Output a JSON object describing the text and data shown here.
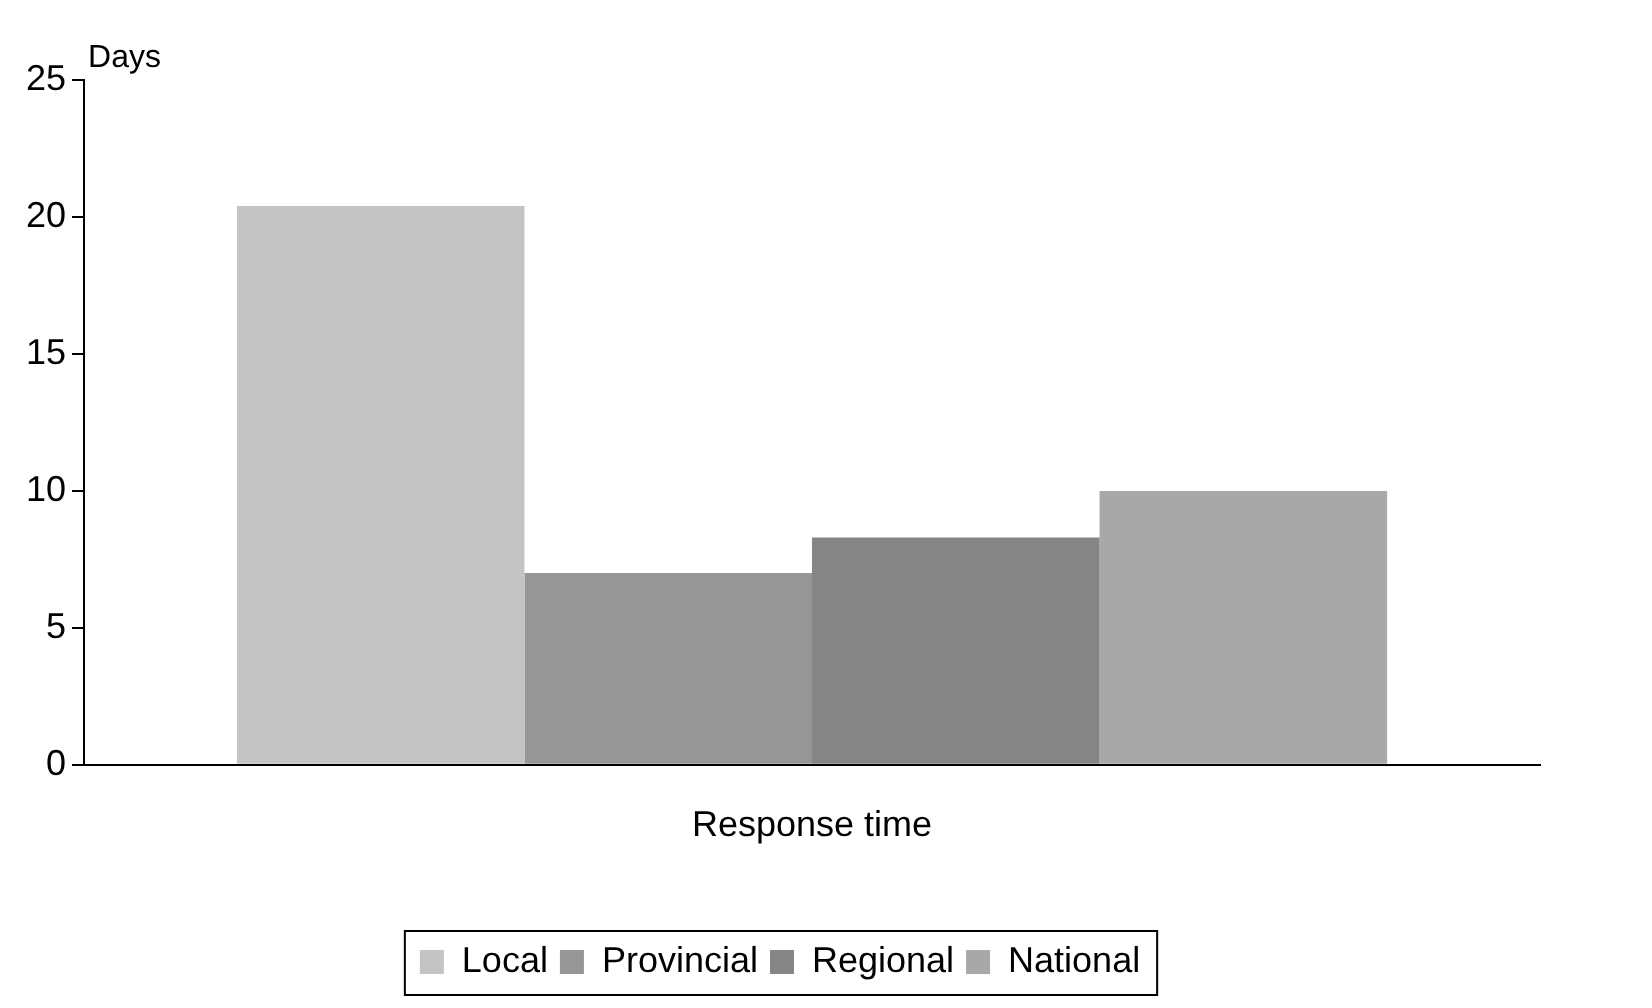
{
  "chart_data": {
    "type": "bar",
    "ylabel": "Days",
    "categories": [
      "Response time"
    ],
    "series": [
      {
        "name": "Local",
        "color": "#c4c4c4",
        "values": [
          20.4
        ]
      },
      {
        "name": "Provincial",
        "color": "#969696",
        "values": [
          7.0
        ]
      },
      {
        "name": "Regional",
        "color": "#858585",
        "values": [
          8.3
        ]
      },
      {
        "name": "National",
        "color": "#a8a8a8",
        "values": [
          10.0
        ]
      }
    ],
    "ylim": [
      0,
      25
    ],
    "yticks": [
      0,
      5,
      10,
      15,
      20,
      25
    ],
    "grid": false,
    "legend": "bottom"
  }
}
